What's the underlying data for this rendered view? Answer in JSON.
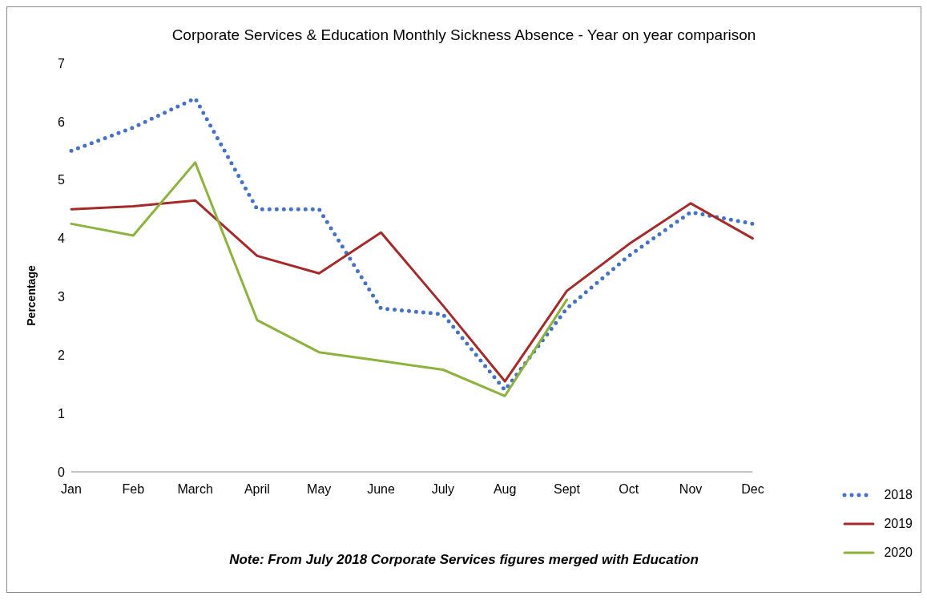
{
  "chart_data": {
    "type": "line",
    "title": "Corporate Services & Education Monthly  Sickness Absence  - Year on year comparison",
    "ylabel": "Percentage",
    "categories": [
      "Jan",
      "Feb",
      "March",
      "April",
      "May",
      "June",
      "July",
      "Aug",
      "Sept",
      "Oct",
      "Nov",
      "Dec"
    ],
    "series": [
      {
        "name": "2018",
        "color": "#4472c4",
        "line_style": "dotted",
        "values": [
          5.5,
          5.9,
          6.4,
          4.5,
          4.5,
          2.8,
          2.7,
          1.4,
          2.8,
          3.7,
          4.45,
          4.25
        ]
      },
      {
        "name": "2019",
        "color": "#a52a2a",
        "line_style": "solid",
        "values": [
          4.5,
          4.55,
          4.65,
          3.7,
          3.4,
          4.1,
          2.85,
          1.55,
          3.1,
          3.9,
          4.6,
          4.0
        ]
      },
      {
        "name": "2020",
        "color": "#8cb33c",
        "line_style": "solid",
        "values": [
          4.25,
          4.05,
          5.3,
          2.6,
          2.05,
          1.9,
          1.75,
          1.3,
          2.95,
          null,
          null,
          null
        ]
      }
    ],
    "ylim": [
      0,
      7
    ],
    "yticks": [
      0,
      1,
      2,
      3,
      4,
      5,
      6,
      7
    ],
    "grid": false,
    "legend": "bottom right",
    "marker": "none",
    "annotations": [
      "Note: From July 2018 Corporate Services figures merged with Education"
    ]
  }
}
